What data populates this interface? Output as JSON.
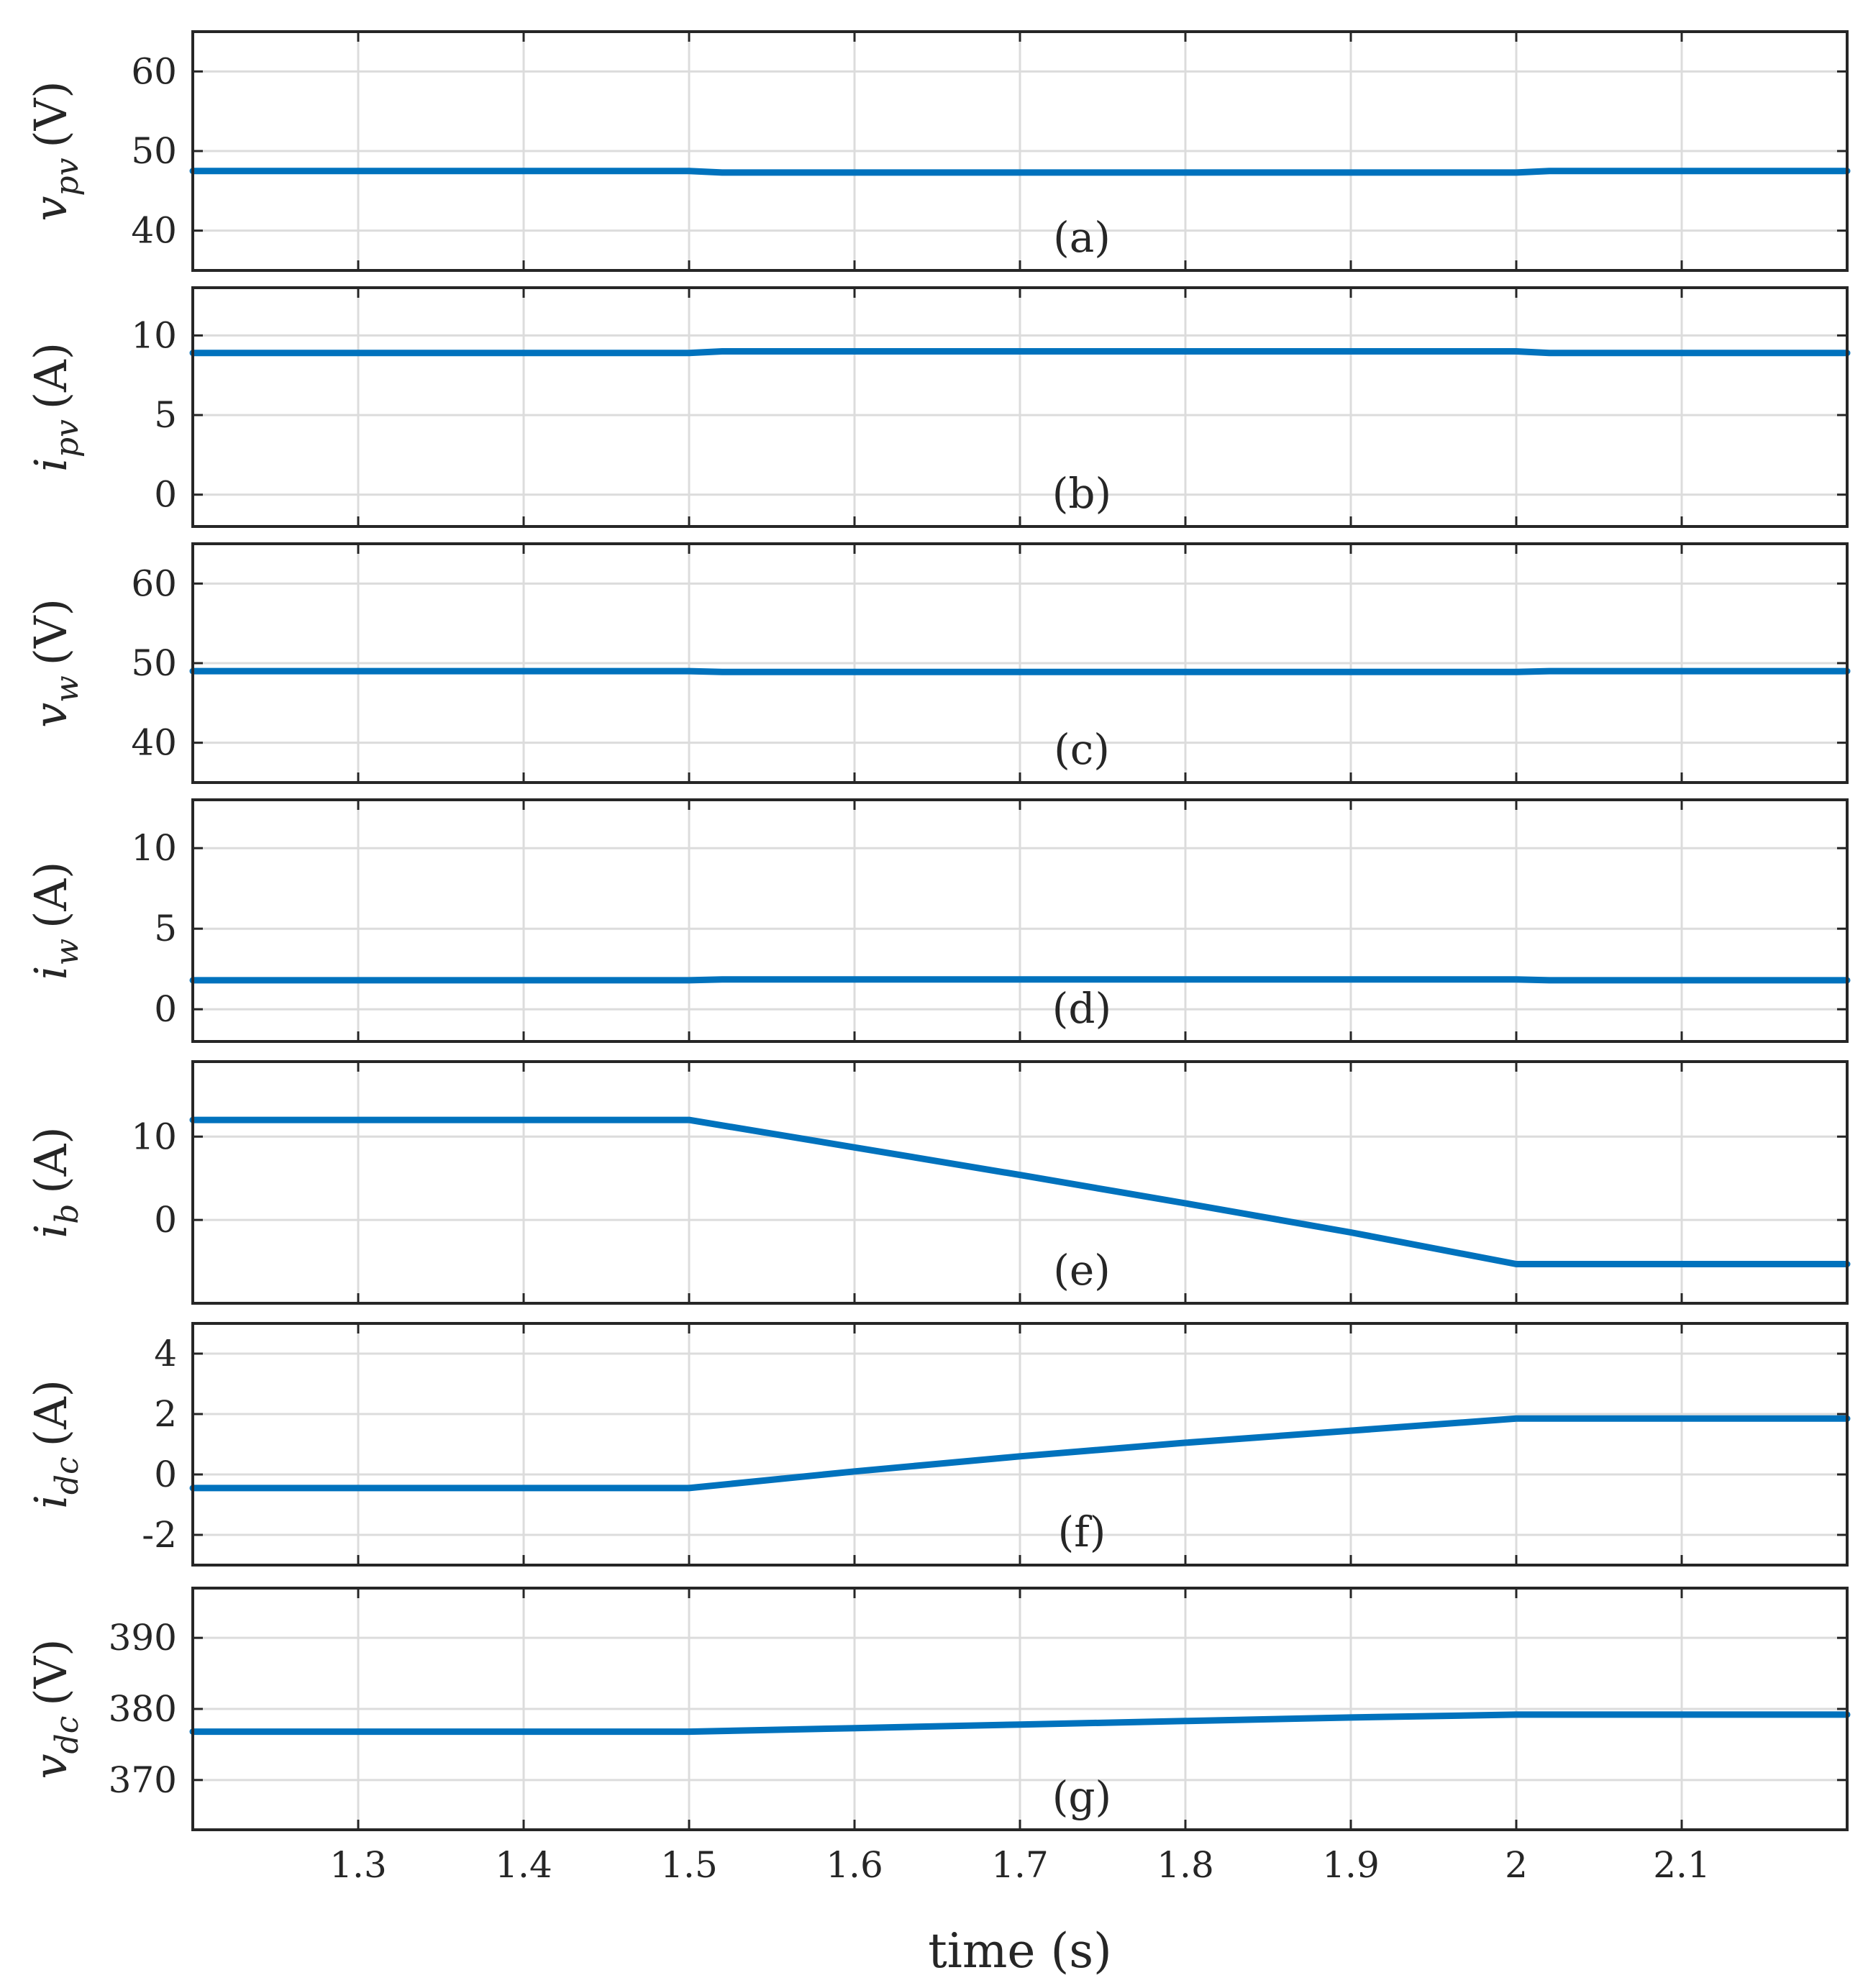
{
  "chart_data": {
    "type": "line",
    "xlabel": "time (s)",
    "x_ticks": [
      "1.3",
      "1.4",
      "1.5",
      "1.6",
      "1.7",
      "1.8",
      "1.9",
      "2",
      "2.1"
    ],
    "xlim": [
      1.2,
      2.2
    ],
    "grid": true,
    "series_color": "#0072bd",
    "panels": [
      {
        "tag": "(a)",
        "ylabel_base": "v",
        "ylabel_sub": "pv",
        "ylabel_unit": "(V)",
        "ylim": [
          35,
          65
        ],
        "yticks": [
          40,
          50,
          60
        ],
        "points": [
          [
            1.2,
            47.5
          ],
          [
            1.5,
            47.5
          ],
          [
            1.52,
            47.3
          ],
          [
            1.98,
            47.3
          ],
          [
            2.0,
            47.3
          ],
          [
            2.02,
            47.5
          ],
          [
            2.2,
            47.5
          ]
        ]
      },
      {
        "tag": "(b)",
        "ylabel_base": "i",
        "ylabel_sub": "pv",
        "ylabel_unit": "(A)",
        "ylim": [
          -2,
          13
        ],
        "yticks": [
          0,
          5,
          10
        ],
        "points": [
          [
            1.2,
            8.9
          ],
          [
            1.5,
            8.9
          ],
          [
            1.52,
            9.0
          ],
          [
            1.98,
            9.0
          ],
          [
            2.0,
            9.0
          ],
          [
            2.02,
            8.9
          ],
          [
            2.2,
            8.9
          ]
        ]
      },
      {
        "tag": "(c)",
        "ylabel_base": "v",
        "ylabel_sub": "w",
        "ylabel_unit": "(V)",
        "ylim": [
          35,
          65
        ],
        "yticks": [
          40,
          50,
          60
        ],
        "points": [
          [
            1.2,
            49.0
          ],
          [
            1.5,
            49.0
          ],
          [
            1.52,
            48.9
          ],
          [
            1.98,
            48.9
          ],
          [
            2.0,
            48.9
          ],
          [
            2.02,
            49.0
          ],
          [
            2.2,
            49.0
          ]
        ]
      },
      {
        "tag": "(d)",
        "ylabel_base": "i",
        "ylabel_sub": "w",
        "ylabel_unit": "(A)",
        "ylim": [
          -2,
          13
        ],
        "yticks": [
          0,
          5,
          10
        ],
        "points": [
          [
            1.2,
            1.8
          ],
          [
            1.5,
            1.8
          ],
          [
            1.52,
            1.85
          ],
          [
            1.98,
            1.85
          ],
          [
            2.0,
            1.85
          ],
          [
            2.02,
            1.8
          ],
          [
            2.2,
            1.8
          ]
        ]
      },
      {
        "tag": "(e)",
        "ylabel_base": "i",
        "ylabel_sub": "b",
        "ylabel_unit": "(A)",
        "ylim": [
          -10,
          19
        ],
        "yticks": [
          0,
          10
        ],
        "points": [
          [
            1.2,
            12.0
          ],
          [
            1.5,
            12.0
          ],
          [
            1.6,
            8.7
          ],
          [
            1.7,
            5.4
          ],
          [
            1.8,
            2.0
          ],
          [
            1.9,
            -1.5
          ],
          [
            2.0,
            -5.3
          ],
          [
            2.2,
            -5.3
          ]
        ]
      },
      {
        "tag": "(f)",
        "ylabel_base": "i",
        "ylabel_sub": "dc",
        "ylabel_unit": "(A)",
        "ylim": [
          -3,
          5
        ],
        "yticks": [
          -2,
          0,
          2,
          4
        ],
        "points": [
          [
            1.2,
            -0.45
          ],
          [
            1.5,
            -0.45
          ],
          [
            1.6,
            0.1
          ],
          [
            1.7,
            0.6
          ],
          [
            1.8,
            1.05
          ],
          [
            1.9,
            1.45
          ],
          [
            2.0,
            1.85
          ],
          [
            2.2,
            1.85
          ]
        ]
      },
      {
        "tag": "(g)",
        "ylabel_base": "v",
        "ylabel_sub": "dc",
        "ylabel_unit": "(V)",
        "ylim": [
          363,
          397
        ],
        "yticks": [
          370,
          380,
          390
        ],
        "points": [
          [
            1.2,
            376.8
          ],
          [
            1.5,
            376.8
          ],
          [
            1.6,
            377.3
          ],
          [
            1.7,
            377.8
          ],
          [
            1.8,
            378.3
          ],
          [
            1.9,
            378.8
          ],
          [
            2.0,
            379.2
          ],
          [
            2.2,
            379.2
          ]
        ]
      }
    ]
  }
}
